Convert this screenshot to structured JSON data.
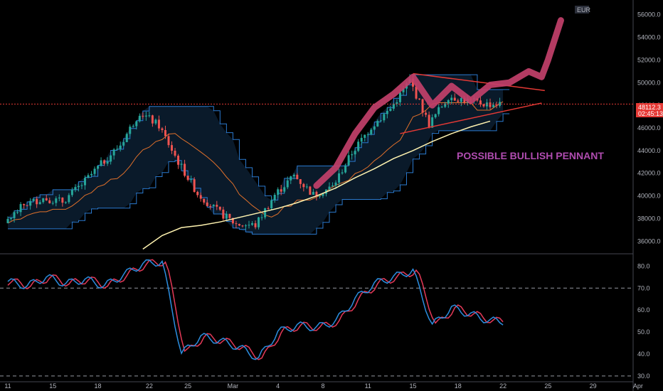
{
  "chart_data": [
    {
      "type": "line",
      "currency": "EUR",
      "x_ticks": [
        "11",
        "15",
        "18",
        "22",
        "25",
        "Mar",
        "4",
        "8",
        "11",
        "15",
        "18",
        "22",
        "25",
        "29",
        "Apr"
      ],
      "y_ticks": [
        "56000.0",
        "54000.0",
        "52000.0",
        "50000.0",
        "48000.0",
        "46000.0",
        "44000.0",
        "42000.0",
        "40000.0",
        "38000.0",
        "36000.0"
      ],
      "ylim": [
        35200,
        57300
      ],
      "last_price": "48112.3",
      "countdown": "02:45:13",
      "annotation": "POSSIBLE BULLISH PENNANT",
      "colors": {
        "up": "#26a69a",
        "down": "#ef5350",
        "channel": "#2b7bd1",
        "mid": "#e0702a",
        "ma": "#fff3b0",
        "forecast": "#c2406a",
        "pennant": "#e53935",
        "last_price": "#e53935"
      },
      "series": [
        {
          "x": [
            0,
            3,
            6,
            9,
            12,
            15,
            18,
            21,
            24,
            27,
            30,
            33,
            36,
            39,
            42,
            45,
            48,
            51,
            54,
            57,
            60,
            63,
            66,
            69,
            72,
            75
          ],
          "values": [
            37600,
            39200,
            39800,
            39500,
            41000,
            42800,
            44500,
            47400,
            46200,
            43000,
            40200,
            38700,
            37500,
            37400,
            40100,
            41800,
            40100,
            40800,
            43800,
            46100,
            47700,
            50200,
            46300,
            48800,
            48400,
            48100
          ]
        },
        {
          "name": "",
          "x": [
            21,
            24,
            27,
            30,
            33,
            36,
            39,
            42,
            45,
            48,
            51,
            54,
            57,
            60,
            63,
            66,
            69,
            72,
            75
          ],
          "values": [
            35300,
            36500,
            37200,
            37400,
            37700,
            38100,
            38500,
            38900,
            39400,
            40000,
            40700,
            41600,
            42400,
            43300,
            44000,
            44800,
            45500,
            46100,
            46600
          ]
        },
        {
          "name": "",
          "x": [
            48,
            51,
            54,
            57,
            60,
            63,
            66,
            69,
            72,
            75,
            78,
            81,
            83,
            84,
            86
          ],
          "values": [
            40900,
            42500,
            45500,
            47800,
            49000,
            50500,
            48000,
            49700,
            48400,
            49800,
            50000,
            51000,
            50500,
            52000,
            55500
          ]
        }
      ]
    },
    {
      "type": "line",
      "y_ticks": [
        "80.0",
        "70.0",
        "60.0",
        "50.0",
        "40.0",
        "30.0"
      ],
      "ylim": [
        28,
        84
      ],
      "levels": [
        70,
        30
      ],
      "series": [
        {
          "name": "",
          "x": [
            0,
            3,
            6,
            9,
            12,
            15,
            18,
            21,
            24,
            27,
            30,
            33,
            36,
            39,
            42,
            45,
            48,
            51,
            54,
            57,
            60,
            63,
            66,
            69,
            72,
            75
          ],
          "values": [
            73,
            71,
            75,
            72,
            74,
            71,
            76,
            81,
            82,
            40,
            48,
            46,
            43,
            38,
            50,
            53,
            52,
            55,
            65,
            72,
            75,
            78,
            53,
            61,
            58,
            55
          ]
        }
      ]
    }
  ]
}
